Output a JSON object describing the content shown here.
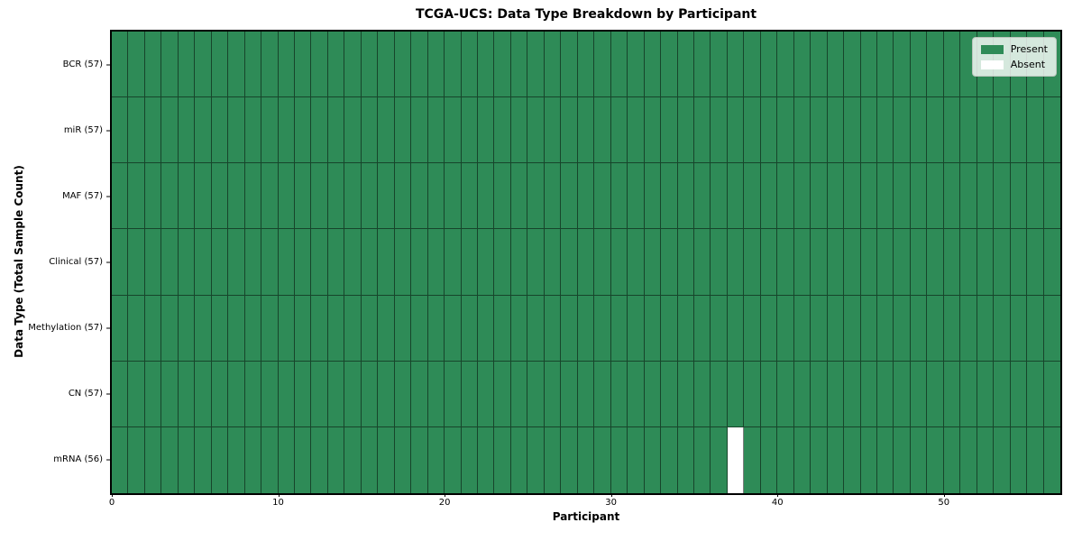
{
  "chart_data": {
    "type": "heatmap",
    "title": "TCGA-UCS: Data Type Breakdown by Participant",
    "xlabel": "Participant",
    "ylabel": "Data Type (Total Sample Count)",
    "x_range": [
      0,
      57
    ],
    "x_ticks": [
      0,
      10,
      20,
      30,
      40,
      50
    ],
    "n_participants": 57,
    "rows": [
      {
        "label": "BCR (57)",
        "data_type": "BCR",
        "total_samples": 57,
        "absent_participants": []
      },
      {
        "label": "miR (57)",
        "data_type": "miR",
        "total_samples": 57,
        "absent_participants": []
      },
      {
        "label": "MAF (57)",
        "data_type": "MAF",
        "total_samples": 57,
        "absent_participants": []
      },
      {
        "label": "Clinical (57)",
        "data_type": "Clinical",
        "total_samples": 57,
        "absent_participants": []
      },
      {
        "label": "Methylation (57)",
        "data_type": "Methylation",
        "total_samples": 57,
        "absent_participants": []
      },
      {
        "label": "CN (57)",
        "data_type": "CN",
        "total_samples": 57,
        "absent_participants": []
      },
      {
        "label": "mRNA (56)",
        "data_type": "mRNA",
        "total_samples": 56,
        "absent_participants": [
          37
        ]
      }
    ],
    "legend": {
      "position": "upper right",
      "entries": [
        {
          "label": "Present",
          "color": "#2e8b57"
        },
        {
          "label": "Absent",
          "color": "#ffffff"
        }
      ]
    },
    "colors": {
      "present": "#2e8b57",
      "absent": "#ffffff"
    }
  }
}
